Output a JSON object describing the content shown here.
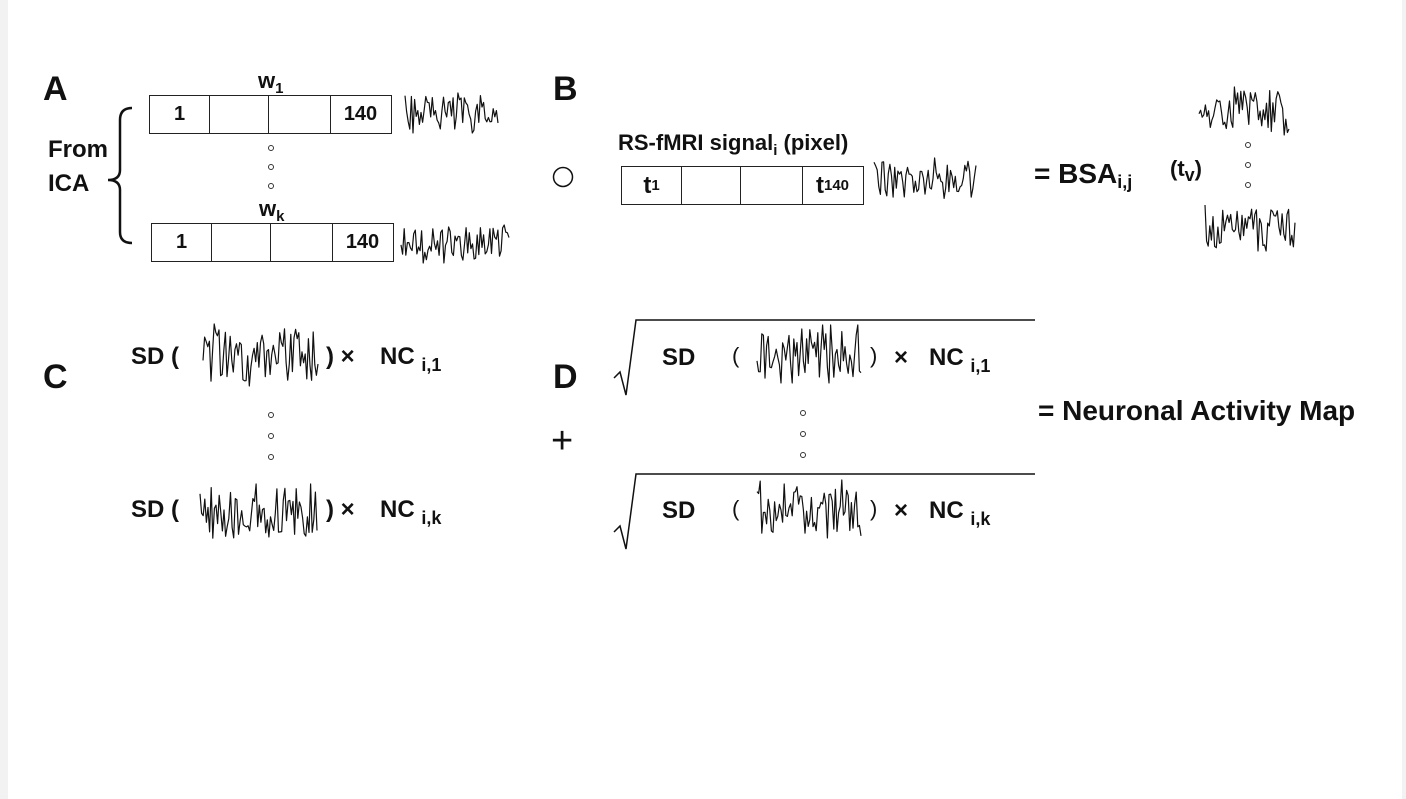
{
  "panelA": {
    "label": "A",
    "from_label": "From",
    "ica_label": "ICA",
    "w1_main": "w",
    "w1_sub": "1",
    "wk_main": "w",
    "wk_sub": "k",
    "row1_first": "1",
    "row1_last": "140",
    "rowk_first": "1",
    "rowk_last": "140"
  },
  "panelB": {
    "label": "B",
    "signal_main": "RS-fMRI signal",
    "signal_sub": "i",
    "signal_suffix": " (pixel)",
    "t_first_main": "t",
    "t_first_sub": "1",
    "t_last_main": "t",
    "t_last_sub": "140",
    "eq_main": "= BSA",
    "eq_sub": "i,j",
    "tv_open": "(t",
    "tv_sub": "v",
    "tv_close": ")"
  },
  "panelC": {
    "label": "C",
    "sd_open_1": "SD (",
    "close_times_1": ") ×",
    "nc_main_1": "NC",
    "nc_sub_1": "i,1",
    "sd_open_k": "SD (",
    "close_times_k": ") ×",
    "nc_main_k": "NC",
    "nc_sub_k": "i,k"
  },
  "panelD": {
    "label": "D",
    "plus": "+",
    "sd_1": "SD",
    "open_1": "(",
    "close_1": ")",
    "times_1": "×",
    "nc_main_1": "NC",
    "nc_sub_1": "i,1",
    "sd_k": "SD",
    "open_k": "(",
    "close_k": ")",
    "times_k": "×",
    "nc_main_k": "NC",
    "nc_sub_k": "i,k",
    "result": "= Neuronal Activity Map"
  }
}
